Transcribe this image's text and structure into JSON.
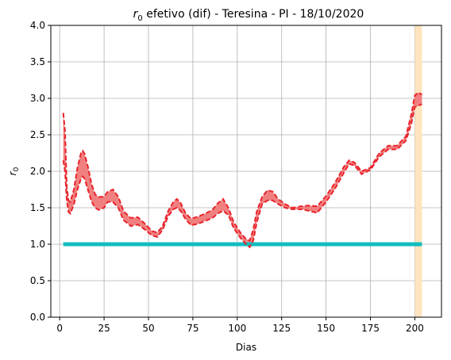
{
  "chart_data": {
    "type": "line",
    "title_main": "r",
    "title_sub": "0",
    "title_rest": " efetivo (dif) - Teresina - PI - 18/10/2020",
    "xlabel": "Dias",
    "ylabel_main": "r",
    "ylabel_sub": "0",
    "xlim": [
      -5,
      215
    ],
    "ylim": [
      0,
      4
    ],
    "xticks": [
      0,
      25,
      50,
      75,
      100,
      125,
      150,
      175,
      200
    ],
    "yticks": [
      0.0,
      0.5,
      1.0,
      1.5,
      2.0,
      2.5,
      3.0,
      3.5,
      4.0
    ],
    "xtick_labels": [
      "0",
      "25",
      "50",
      "75",
      "100",
      "125",
      "150",
      "175",
      "200"
    ],
    "ytick_labels": [
      "0.0",
      "0.5",
      "1.0",
      "1.5",
      "2.0",
      "2.5",
      "3.0",
      "3.5",
      "4.0"
    ],
    "grid": true,
    "highlight_region": {
      "x0": 200,
      "x1": 204,
      "color": "#ffe4bf"
    },
    "reference_line": {
      "y": 1.0,
      "x0": 2,
      "x1": 204,
      "color": "#12bdbf"
    },
    "series": [
      {
        "role": "upper",
        "color": "#e8232a",
        "x": [
          2,
          3,
          4,
          5,
          6,
          8,
          10,
          12,
          13,
          14,
          16,
          18,
          20,
          22,
          25,
          27,
          30,
          33,
          36,
          40,
          44,
          48,
          52,
          55,
          58,
          61,
          64,
          66,
          68,
          71,
          74,
          78,
          82,
          86,
          89,
          92,
          95,
          98,
          102,
          105,
          107,
          109,
          111,
          114,
          117,
          120,
          123,
          127,
          131,
          136,
          140,
          145,
          150,
          155,
          160,
          163,
          166,
          170,
          175,
          180,
          185,
          190,
          195,
          198,
          200,
          202,
          204
        ],
        "y": [
          2.8,
          2.55,
          1.78,
          1.6,
          1.58,
          1.75,
          2.05,
          2.25,
          2.28,
          2.24,
          2.05,
          1.82,
          1.68,
          1.65,
          1.65,
          1.72,
          1.75,
          1.65,
          1.45,
          1.36,
          1.37,
          1.28,
          1.18,
          1.16,
          1.25,
          1.45,
          1.58,
          1.62,
          1.57,
          1.42,
          1.35,
          1.38,
          1.42,
          1.47,
          1.56,
          1.62,
          1.5,
          1.3,
          1.15,
          1.07,
          1.05,
          1.2,
          1.45,
          1.65,
          1.74,
          1.72,
          1.62,
          1.55,
          1.5,
          1.52,
          1.53,
          1.52,
          1.66,
          1.84,
          2.06,
          2.15,
          2.12,
          2.0,
          2.05,
          2.25,
          2.35,
          2.35,
          2.48,
          2.78,
          3.04,
          3.08,
          3.05
        ]
      },
      {
        "role": "lower",
        "color": "#e8232a",
        "x": [
          2,
          3,
          4,
          5,
          6,
          8,
          10,
          12,
          13,
          14,
          16,
          18,
          20,
          22,
          25,
          27,
          30,
          33,
          36,
          40,
          44,
          48,
          52,
          55,
          58,
          61,
          64,
          66,
          68,
          71,
          74,
          78,
          82,
          86,
          89,
          92,
          95,
          98,
          102,
          105,
          107,
          109,
          111,
          114,
          117,
          120,
          123,
          127,
          131,
          136,
          140,
          145,
          150,
          155,
          160,
          163,
          166,
          170,
          175,
          180,
          185,
          190,
          195,
          198,
          200,
          202,
          204
        ],
        "y": [
          2.15,
          2.0,
          1.6,
          1.44,
          1.42,
          1.55,
          1.75,
          1.9,
          1.93,
          1.9,
          1.74,
          1.58,
          1.5,
          1.47,
          1.5,
          1.58,
          1.58,
          1.5,
          1.33,
          1.25,
          1.27,
          1.2,
          1.12,
          1.1,
          1.2,
          1.38,
          1.48,
          1.5,
          1.46,
          1.34,
          1.26,
          1.28,
          1.32,
          1.36,
          1.42,
          1.46,
          1.4,
          1.22,
          1.08,
          1.0,
          0.96,
          1.05,
          1.3,
          1.55,
          1.6,
          1.6,
          1.55,
          1.5,
          1.48,
          1.48,
          1.46,
          1.43,
          1.58,
          1.76,
          1.98,
          2.1,
          2.08,
          1.96,
          2.02,
          2.2,
          2.3,
          2.3,
          2.42,
          2.65,
          2.88,
          2.9,
          2.92
        ]
      }
    ],
    "band_fill": "#f08080"
  }
}
